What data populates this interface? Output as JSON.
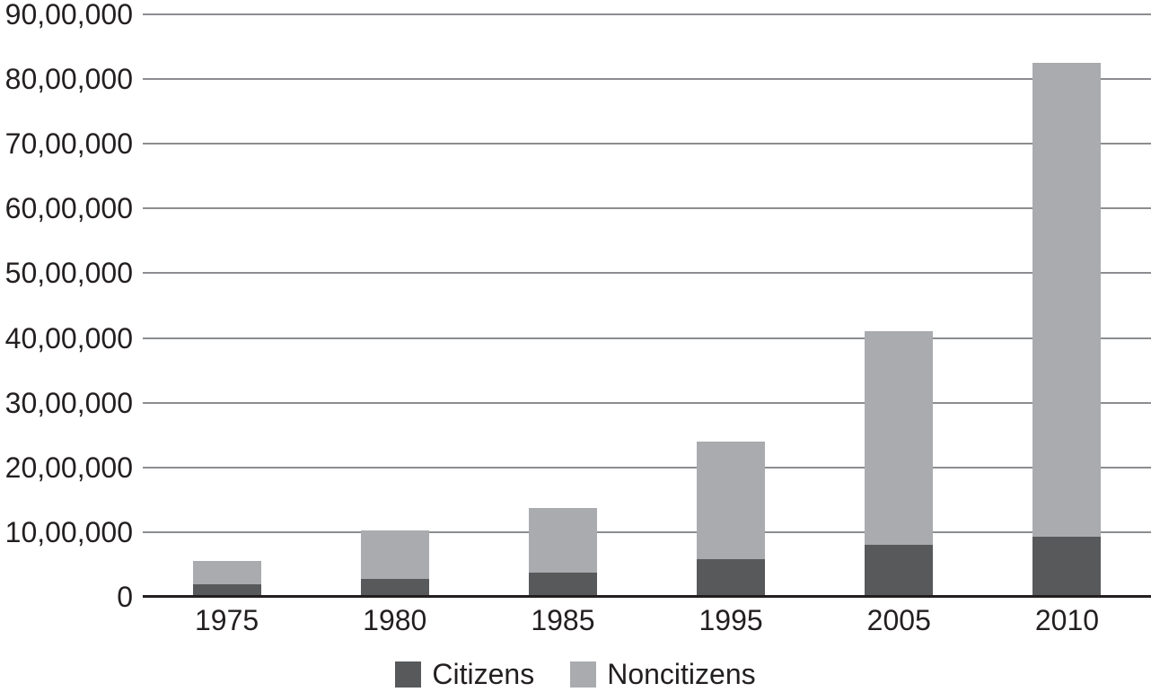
{
  "chart_data": {
    "type": "bar",
    "stacked": true,
    "title": "",
    "xlabel": "",
    "ylabel": "",
    "categories": [
      "1975",
      "1980",
      "1985",
      "1995",
      "2005",
      "2010"
    ],
    "series": [
      {
        "name": "Citizens",
        "color": "#58595B",
        "values": [
          200000,
          280000,
          380000,
          580000,
          810000,
          930000
        ]
      },
      {
        "name": "Noncitizens",
        "color": "#A9ABAE",
        "values": [
          350000,
          750000,
          1000000,
          1820000,
          3290000,
          7320000
        ]
      }
    ],
    "totals": [
      550000,
      1030000,
      1380000,
      2400000,
      4100000,
      8250000
    ],
    "ylim": [
      0,
      9000000
    ],
    "ytick_step": 1000000,
    "ytick_labels": [
      "0",
      "10,00,000",
      "20,00,000",
      "30,00,000",
      "40,00,000",
      "50,00,000",
      "60,00,000",
      "70,00,000",
      "80,00,000",
      "90,00,000"
    ],
    "number_format": "indian-lakh",
    "grid": "horizontal",
    "legend_position": "bottom"
  },
  "colors": {
    "citizens": "#58595B",
    "noncitizens": "#A9ABAE",
    "gridline": "#8B8D90",
    "axis": "#231F20",
    "text": "#231F20",
    "background": "#FFFFFF"
  }
}
